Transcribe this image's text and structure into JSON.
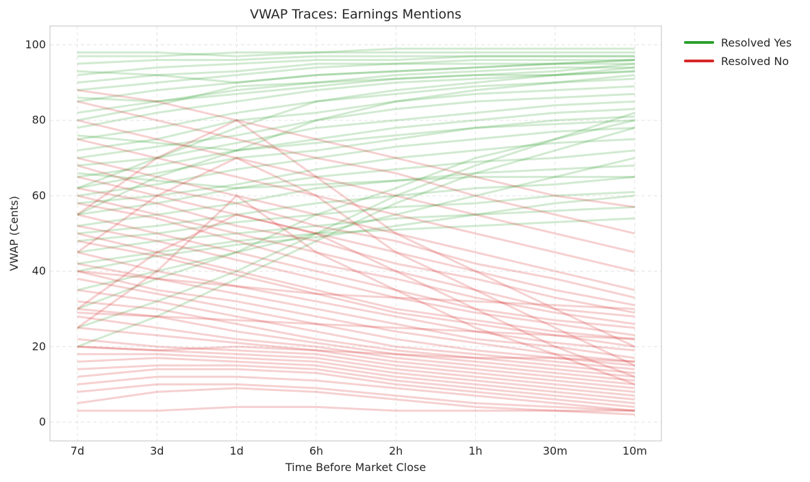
{
  "chart_data": {
    "type": "line",
    "title": "VWAP Traces: Earnings Mentions",
    "xlabel": "Time Before Market Close",
    "ylabel": "VWAP (Cents)",
    "categories": [
      "7d",
      "3d",
      "1d",
      "6h",
      "2h",
      "1h",
      "30m",
      "10m"
    ],
    "yticks": [
      0,
      20,
      40,
      60,
      80,
      100
    ],
    "ylim": [
      -5,
      105
    ],
    "grid": true,
    "legend_position": "outside-top-right",
    "legend": [
      {
        "label": "Resolved Yes",
        "color": "#2ca02c"
      },
      {
        "label": "Resolved No",
        "color": "#d62728"
      }
    ],
    "series": [
      {
        "color": "#2ca02c",
        "values": [
          97,
          97,
          98,
          98,
          98,
          98,
          98,
          98
        ]
      },
      {
        "color": "#2ca02c",
        "values": [
          95,
          96,
          96,
          97,
          97,
          97,
          97,
          97
        ]
      },
      {
        "color": "#2ca02c",
        "values": [
          92,
          94,
          95,
          96,
          96,
          97,
          97,
          97
        ]
      },
      {
        "color": "#2ca02c",
        "values": [
          90,
          92,
          93,
          95,
          95,
          96,
          96,
          96
        ]
      },
      {
        "color": "#2ca02c",
        "values": [
          88,
          90,
          92,
          94,
          95,
          95,
          95,
          96
        ]
      },
      {
        "color": "#2ca02c",
        "values": [
          85,
          88,
          90,
          92,
          93,
          94,
          95,
          95
        ]
      },
      {
        "color": "#2ca02c",
        "values": [
          82,
          85,
          88,
          90,
          92,
          93,
          94,
          94
        ]
      },
      {
        "color": "#2ca02c",
        "values": [
          78,
          82,
          85,
          88,
          90,
          91,
          92,
          93
        ]
      },
      {
        "color": "#2ca02c",
        "values": [
          75,
          78,
          82,
          85,
          87,
          89,
          90,
          91
        ]
      },
      {
        "color": "#2ca02c",
        "values": [
          72,
          75,
          80,
          82,
          85,
          87,
          88,
          89
        ]
      },
      {
        "color": "#2ca02c",
        "values": [
          70,
          73,
          76,
          80,
          83,
          85,
          86,
          87
        ]
      },
      {
        "color": "#2ca02c",
        "values": [
          68,
          70,
          74,
          78,
          80,
          82,
          84,
          85
        ]
      },
      {
        "color": "#2ca02c",
        "values": [
          65,
          68,
          72,
          75,
          78,
          80,
          82,
          83
        ]
      },
      {
        "color": "#2ca02c",
        "values": [
          62,
          66,
          70,
          72,
          75,
          78,
          80,
          81
        ]
      },
      {
        "color": "#2ca02c",
        "values": [
          60,
          63,
          67,
          70,
          73,
          75,
          77,
          78
        ]
      },
      {
        "color": "#2ca02c",
        "values": [
          58,
          60,
          63,
          67,
          70,
          72,
          74,
          75
        ]
      },
      {
        "color": "#2ca02c",
        "values": [
          55,
          58,
          62,
          65,
          67,
          69,
          70,
          72
        ]
      },
      {
        "color": "#2ca02c",
        "values": [
          52,
          55,
          58,
          62,
          64,
          66,
          67,
          68
        ]
      },
      {
        "color": "#2ca02c",
        "values": [
          50,
          52,
          55,
          58,
          60,
          62,
          63,
          65
        ]
      },
      {
        "color": "#2ca02c",
        "values": [
          48,
          50,
          53,
          55,
          57,
          58,
          60,
          61
        ]
      },
      {
        "color": "#2ca02c",
        "values": [
          45,
          48,
          50,
          52,
          54,
          55,
          56,
          57
        ]
      },
      {
        "color": "#2ca02c",
        "values": [
          42,
          45,
          48,
          50,
          51,
          52,
          53,
          54
        ]
      },
      {
        "color": "#2ca02c",
        "values": [
          40,
          44,
          47,
          49,
          52,
          55,
          58,
          60
        ]
      },
      {
        "color": "#2ca02c",
        "values": [
          35,
          40,
          45,
          50,
          55,
          60,
          65,
          70
        ]
      },
      {
        "color": "#2ca02c",
        "values": [
          30,
          38,
          45,
          55,
          62,
          70,
          75,
          80
        ]
      },
      {
        "color": "#2ca02c",
        "values": [
          25,
          32,
          40,
          50,
          60,
          68,
          75,
          82
        ]
      },
      {
        "color": "#2ca02c",
        "values": [
          20,
          28,
          38,
          48,
          58,
          66,
          72,
          78
        ]
      },
      {
        "color": "#2ca02c",
        "values": [
          62,
          70,
          78,
          85,
          88,
          90,
          92,
          94
        ]
      },
      {
        "color": "#2ca02c",
        "values": [
          55,
          65,
          72,
          80,
          85,
          88,
          90,
          92
        ]
      },
      {
        "color": "#2ca02c",
        "values": [
          80,
          84,
          89,
          90,
          91,
          92,
          93,
          95
        ]
      },
      {
        "color": "#2ca02c",
        "values": [
          93,
          92,
          90,
          92,
          93,
          94,
          95,
          96
        ]
      },
      {
        "color": "#2ca02c",
        "values": [
          86,
          85,
          87,
          89,
          91,
          92,
          92,
          93
        ]
      },
      {
        "color": "#2ca02c",
        "values": [
          76,
          74,
          72,
          74,
          76,
          78,
          79,
          80
        ]
      },
      {
        "color": "#2ca02c",
        "values": [
          66,
          64,
          62,
          63,
          64,
          65,
          65,
          65
        ]
      },
      {
        "color": "#2ca02c",
        "values": [
          98,
          98,
          97,
          98,
          99,
          99,
          99,
          99
        ]
      },
      {
        "color": "#d62728",
        "values": [
          88,
          85,
          80,
          75,
          70,
          65,
          60,
          57
        ]
      },
      {
        "color": "#d62728",
        "values": [
          85,
          80,
          75,
          70,
          66,
          60,
          55,
          50
        ]
      },
      {
        "color": "#d62728",
        "values": [
          80,
          75,
          70,
          65,
          60,
          55,
          50,
          45
        ]
      },
      {
        "color": "#d62728",
        "values": [
          75,
          70,
          65,
          60,
          55,
          50,
          45,
          40
        ]
      },
      {
        "color": "#d62728",
        "values": [
          70,
          65,
          60,
          55,
          50,
          45,
          40,
          35
        ]
      },
      {
        "color": "#d62728",
        "values": [
          68,
          62,
          58,
          52,
          48,
          42,
          38,
          33
        ]
      },
      {
        "color": "#d62728",
        "values": [
          65,
          60,
          55,
          50,
          45,
          40,
          35,
          31
        ]
      },
      {
        "color": "#d62728",
        "values": [
          62,
          58,
          52,
          48,
          42,
          38,
          33,
          29
        ]
      },
      {
        "color": "#d62728",
        "values": [
          60,
          55,
          50,
          45,
          40,
          35,
          30,
          28
        ]
      },
      {
        "color": "#d62728",
        "values": [
          58,
          54,
          48,
          42,
          38,
          33,
          29,
          26
        ]
      },
      {
        "color": "#d62728",
        "values": [
          55,
          50,
          45,
          40,
          35,
          30,
          27,
          25
        ]
      },
      {
        "color": "#d62728",
        "values": [
          52,
          48,
          43,
          38,
          33,
          29,
          26,
          23
        ]
      },
      {
        "color": "#d62728",
        "values": [
          50,
          45,
          40,
          35,
          30,
          27,
          24,
          22
        ]
      },
      {
        "color": "#d62728",
        "values": [
          48,
          44,
          39,
          34,
          29,
          26,
          23,
          20
        ]
      },
      {
        "color": "#d62728",
        "values": [
          45,
          40,
          36,
          32,
          28,
          24,
          21,
          19
        ]
      },
      {
        "color": "#d62728",
        "values": [
          42,
          38,
          34,
          30,
          26,
          22,
          20,
          17
        ]
      },
      {
        "color": "#d62728",
        "values": [
          40,
          35,
          32,
          28,
          24,
          21,
          18,
          16
        ]
      },
      {
        "color": "#d62728",
        "values": [
          38,
          34,
          30,
          26,
          22,
          19,
          17,
          15
        ]
      },
      {
        "color": "#d62728",
        "values": [
          35,
          32,
          28,
          24,
          20,
          18,
          16,
          14
        ]
      },
      {
        "color": "#d62728",
        "values": [
          32,
          30,
          26,
          22,
          19,
          17,
          15,
          13
        ]
      },
      {
        "color": "#d62728",
        "values": [
          30,
          28,
          24,
          21,
          18,
          16,
          14,
          12
        ]
      },
      {
        "color": "#d62728",
        "values": [
          28,
          25,
          22,
          20,
          17,
          15,
          13,
          11
        ]
      },
      {
        "color": "#d62728",
        "values": [
          25,
          23,
          21,
          19,
          16,
          14,
          12,
          10
        ]
      },
      {
        "color": "#d62728",
        "values": [
          22,
          20,
          19,
          18,
          15,
          13,
          11,
          9
        ]
      },
      {
        "color": "#d62728",
        "values": [
          20,
          19,
          18,
          17,
          14,
          12,
          10,
          8
        ]
      },
      {
        "color": "#d62728",
        "values": [
          18,
          18,
          17,
          16,
          13,
          11,
          9,
          7
        ]
      },
      {
        "color": "#d62728",
        "values": [
          16,
          17,
          16,
          15,
          12,
          10,
          8,
          6
        ]
      },
      {
        "color": "#d62728",
        "values": [
          14,
          15,
          15,
          14,
          11,
          9,
          7,
          5
        ]
      },
      {
        "color": "#d62728",
        "values": [
          12,
          14,
          14,
          13,
          10,
          8,
          6,
          4
        ]
      },
      {
        "color": "#d62728",
        "values": [
          10,
          12,
          12,
          11,
          9,
          7,
          5,
          3
        ]
      },
      {
        "color": "#d62728",
        "values": [
          8,
          10,
          10,
          9,
          7,
          5,
          4,
          3
        ]
      },
      {
        "color": "#d62728",
        "values": [
          5,
          8,
          9,
          8,
          6,
          4,
          3,
          2
        ]
      },
      {
        "color": "#d62728",
        "values": [
          30,
          45,
          55,
          50,
          40,
          30,
          20,
          12
        ]
      },
      {
        "color": "#d62728",
        "values": [
          25,
          40,
          60,
          45,
          35,
          25,
          18,
          10
        ]
      },
      {
        "color": "#d62728",
        "values": [
          45,
          60,
          70,
          60,
          45,
          35,
          25,
          15
        ]
      },
      {
        "color": "#d62728",
        "values": [
          55,
          70,
          80,
          65,
          50,
          40,
          30,
          20
        ]
      },
      {
        "color": "#d62728",
        "values": [
          20,
          19,
          20,
          19,
          18,
          17,
          17,
          16
        ]
      },
      {
        "color": "#d62728",
        "values": [
          29,
          28,
          27,
          26,
          25,
          24,
          23,
          22
        ]
      },
      {
        "color": "#d62728",
        "values": [
          40,
          38,
          36,
          34,
          33,
          32,
          31,
          30
        ]
      },
      {
        "color": "#d62728",
        "values": [
          3,
          3,
          4,
          4,
          3,
          3,
          3,
          3
        ]
      }
    ]
  }
}
